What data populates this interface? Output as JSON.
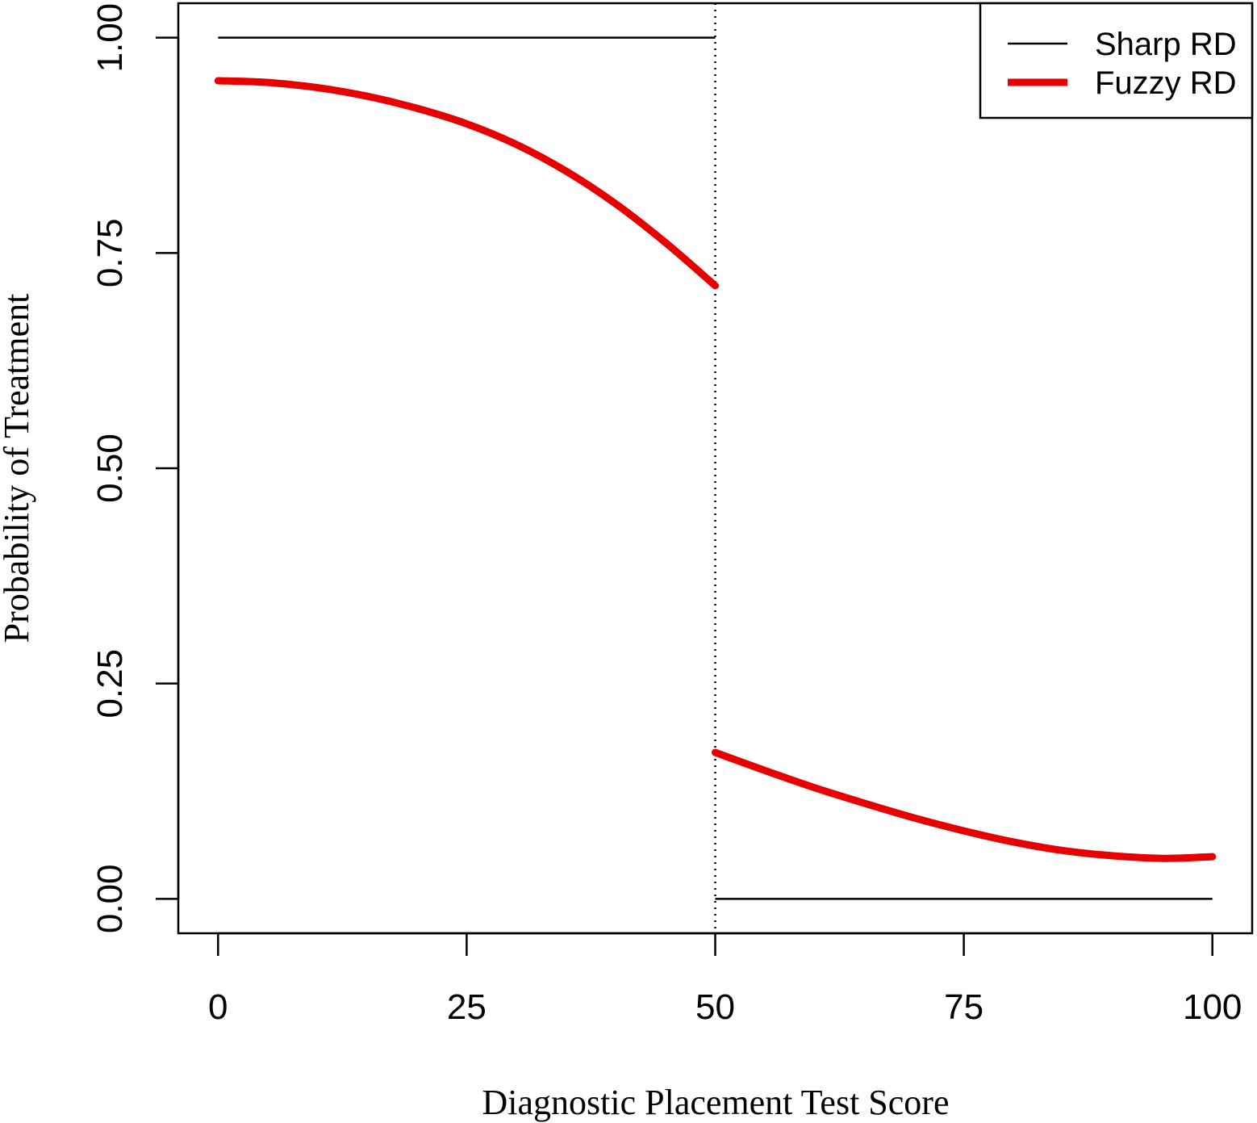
{
  "chart_data": {
    "type": "line",
    "title": "",
    "xlabel": "Diagnostic Placement Test Score",
    "ylabel": "Probability of Treatment",
    "xlim": [
      -4,
      104
    ],
    "ylim": [
      -0.04,
      1.04
    ],
    "xticks": [
      0,
      25,
      50,
      75,
      100
    ],
    "xtick_labels": [
      "0",
      "25",
      "50",
      "75",
      "100"
    ],
    "yticks": [
      0,
      0.25,
      0.5,
      0.75,
      1.0
    ],
    "ytick_labels": [
      "0.00",
      "0.25",
      "0.50",
      "0.75",
      "1.00"
    ],
    "cutoff": 50,
    "grid": false,
    "legend_position": "top-right",
    "series": [
      {
        "name": "Sharp RD",
        "color": "#000000",
        "style": "thin",
        "segments": [
          {
            "x": [
              0,
              50
            ],
            "y": [
              1.0,
              1.0
            ]
          },
          {
            "x": [
              50,
              100
            ],
            "y": [
              0.0,
              0.0
            ]
          }
        ]
      },
      {
        "name": "Fuzzy RD",
        "color": "#e60000",
        "style": "thick",
        "segments": [
          {
            "x": [
              0,
              5,
              10,
              15,
              20,
              25,
              30,
              35,
              40,
              45,
              50
            ],
            "y": [
              0.95,
              0.948,
              0.942,
              0.932,
              0.918,
              0.9,
              0.876,
              0.845,
              0.807,
              0.762,
              0.712
            ]
          },
          {
            "x": [
              50,
              55,
              60,
              65,
              70,
              75,
              80,
              85,
              90,
              95,
              100
            ],
            "y": [
              0.17,
              0.149,
              0.129,
              0.111,
              0.094,
              0.079,
              0.066,
              0.056,
              0.05,
              0.047,
              0.049
            ]
          }
        ]
      }
    ]
  }
}
